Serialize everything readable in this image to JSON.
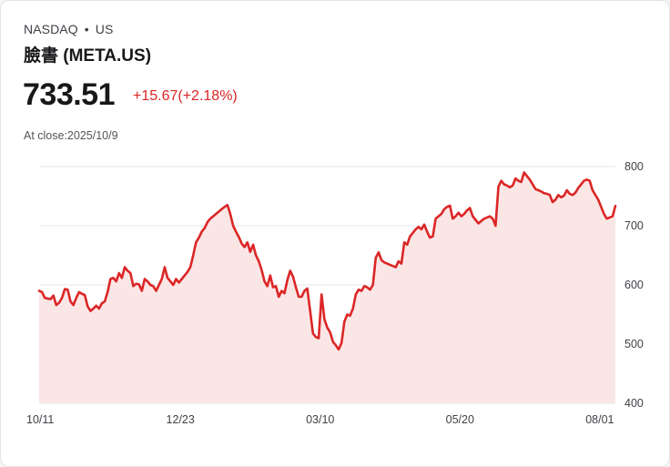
{
  "header": {
    "exchange": "NASDAQ",
    "separator": "•",
    "market": "US",
    "name": "臉書 (META.US)",
    "price": "733.51",
    "change": "+15.67(+2.18%)",
    "close_label": "At close:2025/10/9"
  },
  "colors": {
    "line": "#dc2626",
    "fill": "#fbe6e6",
    "grid": "#e5e7eb"
  },
  "chart_data": {
    "type": "area",
    "title": "臉書 (META.US)",
    "xlabel": "",
    "ylabel": "",
    "ylim": [
      400,
      800
    ],
    "yticks": [
      400,
      500,
      600,
      700,
      800
    ],
    "ytick_labels": [
      "400",
      "500",
      "600",
      "700",
      "800"
    ],
    "xtick_labels": [
      "10/11",
      "12/23",
      "03/10",
      "05/20",
      "08/01"
    ],
    "xtick_index": [
      0,
      49,
      98,
      147,
      196
    ],
    "grid": true,
    "series": [
      {
        "name": "META.US",
        "values": [
          590,
          588,
          578,
          577,
          576,
          582,
          566,
          570,
          578,
          593,
          592,
          572,
          566,
          578,
          588,
          585,
          583,
          564,
          556,
          560,
          565,
          560,
          569,
          572,
          588,
          610,
          612,
          606,
          620,
          612,
          630,
          624,
          620,
          598,
          602,
          601,
          590,
          610,
          606,
          600,
          598,
          590,
          600,
          610,
          630,
          612,
          606,
          600,
          610,
          604,
          610,
          616,
          622,
          630,
          650,
          672,
          680,
          690,
          696,
          706,
          712,
          716,
          720,
          724,
          728,
          732,
          735,
          720,
          700,
          690,
          681,
          670,
          664,
          672,
          656,
          668,
          650,
          640,
          625,
          606,
          598,
          616,
          596,
          598,
          580,
          590,
          586,
          608,
          624,
          614,
          596,
          580,
          580,
          590,
          594,
          556,
          518,
          512,
          510,
          584,
          542,
          528,
          520,
          504,
          498,
          491,
          502,
          538,
          550,
          548,
          560,
          584,
          592,
          590,
          598,
          596,
          592,
          600,
          646,
          655,
          642,
          638,
          636,
          634,
          632,
          630,
          640,
          636,
          672,
          668,
          682,
          688,
          694,
          698,
          694,
          702,
          690,
          680,
          682,
          712,
          716,
          720,
          728,
          732,
          734,
          712,
          716,
          722,
          716,
          720,
          726,
          730,
          716,
          710,
          704,
          708,
          712,
          714,
          716,
          712,
          700,
          766,
          776,
          770,
          768,
          765,
          768,
          780,
          776,
          774,
          790,
          784,
          778,
          770,
          762,
          760,
          758,
          755,
          754,
          752,
          740,
          744,
          752,
          748,
          751,
          760,
          754,
          752,
          756,
          764,
          770,
          776,
          778,
          776,
          760,
          752,
          744,
          732,
          720,
          712,
          714,
          716,
          733.51
        ]
      }
    ]
  }
}
